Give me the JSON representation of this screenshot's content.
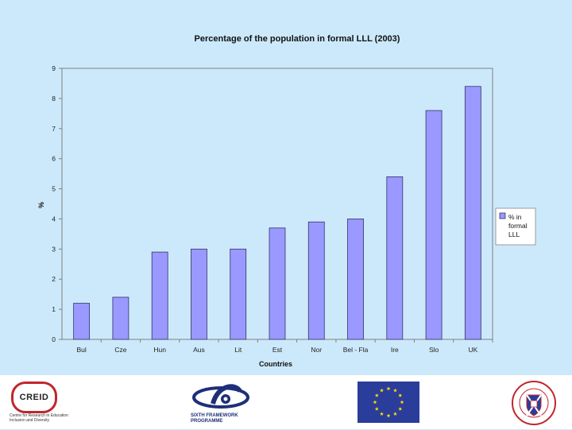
{
  "chart_data": {
    "type": "bar",
    "title": "Percentage of the population in formal LLL (2003)",
    "xlabel": "Countries",
    "ylabel": "%",
    "ylim": [
      0,
      9
    ],
    "yticks": [
      "0",
      "1",
      "2",
      "3",
      "4",
      "5",
      "6",
      "7",
      "8",
      "9"
    ],
    "categories": [
      "Bul",
      "Cze",
      "Hun",
      "Aus",
      "Lit",
      "Est",
      "Nor",
      "Bel - Fla",
      "Ire",
      "Slo",
      "UK"
    ],
    "series": [
      {
        "name": "% in formal LLL",
        "legend_lines": [
          "% in",
          "formal",
          "LLL"
        ],
        "values": [
          1.2,
          1.4,
          2.9,
          3.0,
          3.0,
          3.7,
          3.9,
          4.0,
          5.4,
          7.6,
          8.4
        ]
      }
    ],
    "legend_position": "right",
    "grid": false,
    "colors": {
      "bar_fill": "#9999ff",
      "bar_stroke": "#333366",
      "background": "#cce9fb",
      "axis": "#808080"
    }
  },
  "footer": {
    "creid": {
      "name": "CREID",
      "caption": "Centre for Research in Education Inclusion and Diversity",
      "accent": "#c0262c"
    },
    "sixth_framework": {
      "line1": "SIXTH FRAMEWORK",
      "line2": "PROGRAMME",
      "color": "#1e2f7a"
    },
    "eu_flag": {
      "background": "#2a3d9b",
      "star_color": "#ffdd00",
      "star_count": 12
    },
    "university_seal": {
      "ring_text": "THE UNIVERSITY OF EDINBURGH",
      "color": "#c0262c"
    }
  }
}
